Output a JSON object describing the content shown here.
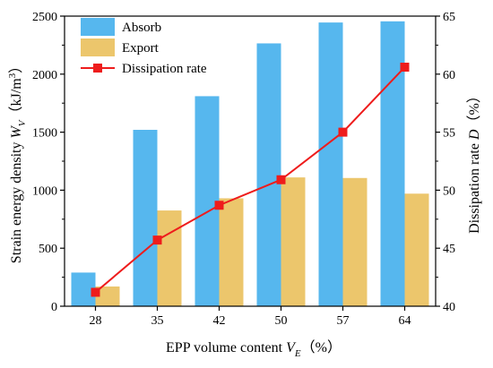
{
  "chart_data": {
    "type": "bar+line",
    "categories": [
      "28",
      "35",
      "42",
      "50",
      "57",
      "64"
    ],
    "series": [
      {
        "name": "Absorb",
        "type": "bar",
        "axis": "left",
        "color": "#56B7EE",
        "values": [
          290,
          1520,
          1810,
          2265,
          2445,
          2455
        ]
      },
      {
        "name": "Export",
        "type": "bar",
        "axis": "left",
        "color": "#ECC66C",
        "values": [
          170,
          825,
          930,
          1110,
          1105,
          970
        ]
      },
      {
        "name": "Dissipation rate",
        "type": "line",
        "axis": "right",
        "color": "#EE1C1C",
        "marker": "square",
        "values": [
          41.2,
          45.7,
          48.7,
          50.9,
          55.0,
          60.6
        ]
      }
    ],
    "y_left": {
      "label_parts": [
        "Strain energy density ",
        "W",
        "V",
        "（kJ/m",
        "3",
        "）"
      ],
      "ylim": [
        0,
        2500
      ],
      "ticks": [
        "0",
        "500",
        "1000",
        "1500",
        "2000",
        "2500"
      ]
    },
    "y_right": {
      "label_parts": [
        "Dissipation rate ",
        "D",
        "（%）"
      ],
      "ylim": [
        40,
        65
      ],
      "ticks": [
        "40",
        "45",
        "50",
        "55",
        "60",
        "65"
      ]
    },
    "x_axis": {
      "label_parts": [
        "EPP volume content ",
        "V",
        "E",
        "（%）"
      ]
    },
    "legend": {
      "position": "top-left"
    },
    "grid": false
  }
}
